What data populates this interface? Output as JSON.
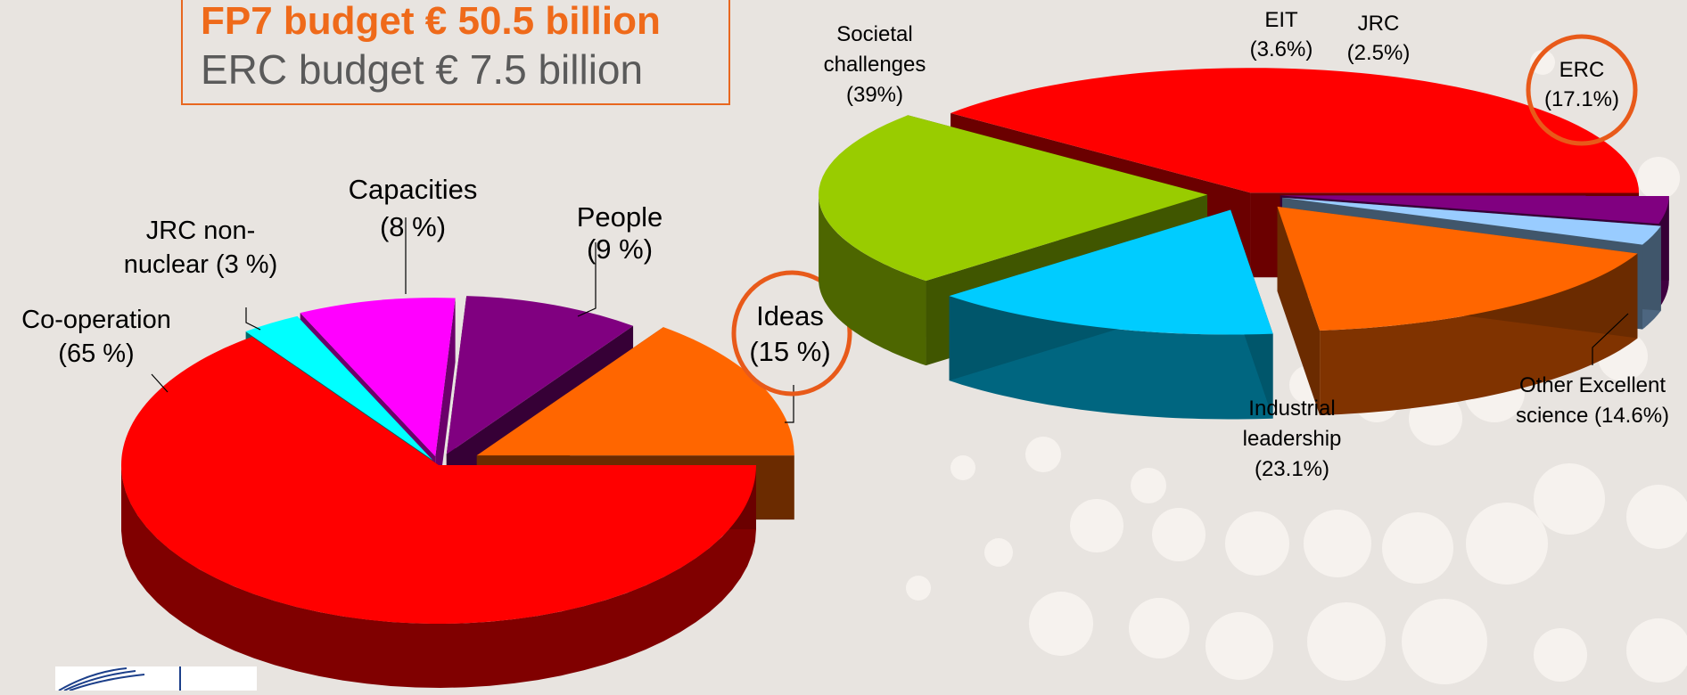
{
  "header": {
    "fp7_line": "FP7 budget € 50.5 billion",
    "erc_line": "ERC budget € 7.5 billion"
  },
  "colors": {
    "background": "#e8e4e0",
    "accent_orange": "#ef6a1a",
    "circle": "#e85a1a"
  },
  "chart_data": [
    {
      "type": "pie",
      "title": "",
      "slices": [
        {
          "label_lines": [
            "Co-operation",
            "(65 %)"
          ],
          "value": 65,
          "color": "#ff0000"
        },
        {
          "label_lines": [
            "JRC non-",
            "nuclear (3 %)"
          ],
          "value": 3,
          "color": "#00ffff"
        },
        {
          "label_lines": [
            "Capacities",
            "(8 %)"
          ],
          "value": 8,
          "color": "#ff00ff"
        },
        {
          "label_lines": [
            "People",
            "(9 %)"
          ],
          "value": 9,
          "color": "#800080"
        },
        {
          "label_lines": [
            "Ideas",
            "(15 %)"
          ],
          "value": 15,
          "color": "#ff6600",
          "highlighted": true
        }
      ]
    },
    {
      "type": "pie",
      "title": "",
      "slices": [
        {
          "label_lines": [
            "Societal",
            "challenges",
            "(39%)"
          ],
          "value": 39,
          "color": "#ff0000"
        },
        {
          "label_lines": [
            "EIT",
            "(3.6%)"
          ],
          "value": 3.6,
          "color": "#800080"
        },
        {
          "label_lines": [
            "JRC",
            "(2.5%)"
          ],
          "value": 2.5,
          "color": "#99ccff"
        },
        {
          "label_lines": [
            "ERC",
            "(17.1%)"
          ],
          "value": 17.1,
          "color": "#ff6600",
          "highlighted": true
        },
        {
          "label_lines": [
            "Other Excellent",
            "science (14.6%)"
          ],
          "value": 14.6,
          "color": "#00ccff"
        },
        {
          "label_lines": [
            "Industrial",
            "leadership",
            "(23.1%)"
          ],
          "value": 23.1,
          "color": "#99cc00"
        }
      ]
    }
  ]
}
